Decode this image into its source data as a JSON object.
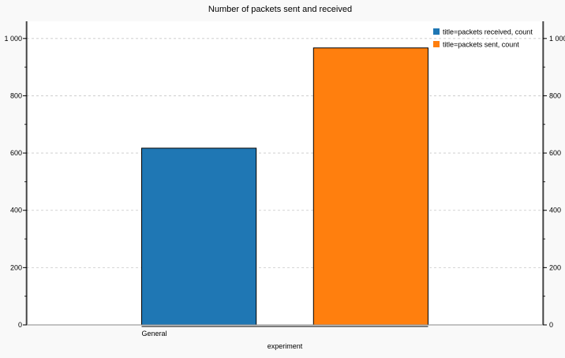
{
  "chart_data": {
    "type": "bar",
    "title": "Number of packets sent and received",
    "xlabel": "experiment",
    "ylabel": "",
    "categories": [
      "General"
    ],
    "series": [
      {
        "name": "title=packets received, count",
        "values": [
          617
        ],
        "color": "#1f77b4"
      },
      {
        "name": "title=packets sent, count",
        "values": [
          967
        ],
        "color": "#ff7f0e"
      }
    ],
    "ylim": [
      0,
      1060
    ],
    "yticks": [
      0,
      200,
      400,
      600,
      800,
      1000
    ],
    "ytick_labels": [
      "0",
      "200",
      "400",
      "600",
      "800",
      "1 000"
    ],
    "minor_tick_step": 100,
    "grid": true,
    "secondary_y_axis": true,
    "legend_position": "top-right"
  }
}
